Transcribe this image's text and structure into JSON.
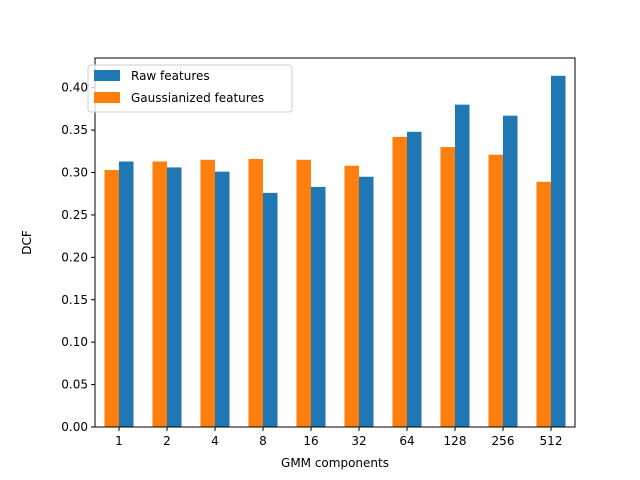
{
  "chart_data": {
    "type": "bar",
    "title": "",
    "xlabel": "GMM components",
    "ylabel": "DCF",
    "categories": [
      "1",
      "2",
      "4",
      "8",
      "16",
      "32",
      "64",
      "128",
      "256",
      "512"
    ],
    "series": [
      {
        "name": "Raw features",
        "color": "#1f77b4",
        "values": [
          0.313,
          0.306,
          0.301,
          0.276,
          0.283,
          0.295,
          0.348,
          0.38,
          0.367,
          0.414
        ]
      },
      {
        "name": "Gaussianized features",
        "color": "#ff7f0e",
        "values": [
          0.303,
          0.313,
          0.315,
          0.316,
          0.315,
          0.308,
          0.342,
          0.33,
          0.321,
          0.289
        ]
      }
    ],
    "ylim": [
      0,
      0.435
    ],
    "yticks": [
      "0.00",
      "0.05",
      "0.10",
      "0.15",
      "0.20",
      "0.25",
      "0.30",
      "0.35",
      "0.40"
    ],
    "legend_position": "top-left",
    "grid": false
  }
}
